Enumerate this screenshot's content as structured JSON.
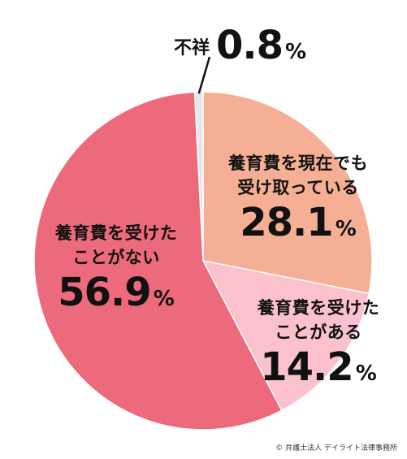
{
  "chart_data": {
    "type": "pie",
    "slices": [
      {
        "label_lines": [
          "養育費を現在でも",
          "受け取っている"
        ],
        "value": 28.1,
        "value_text": "28.1",
        "unit": "%",
        "color": "#f4af94"
      },
      {
        "label_lines": [
          "養育費を受けた",
          "ことがある"
        ],
        "value": 14.2,
        "value_text": "14.2",
        "unit": "%",
        "color": "#fbc1cc"
      },
      {
        "label_lines": [
          "養育費を受けた",
          "ことがない"
        ],
        "value": 56.9,
        "value_text": "56.9",
        "unit": "%",
        "color": "#ec6a7b"
      },
      {
        "label_lines": [
          "不祥"
        ],
        "value": 0.8,
        "value_text": "0.8",
        "unit": "%",
        "color": "#e7e7e7"
      }
    ]
  },
  "credit": "© 弁護士法人 デイライト法律事務所"
}
